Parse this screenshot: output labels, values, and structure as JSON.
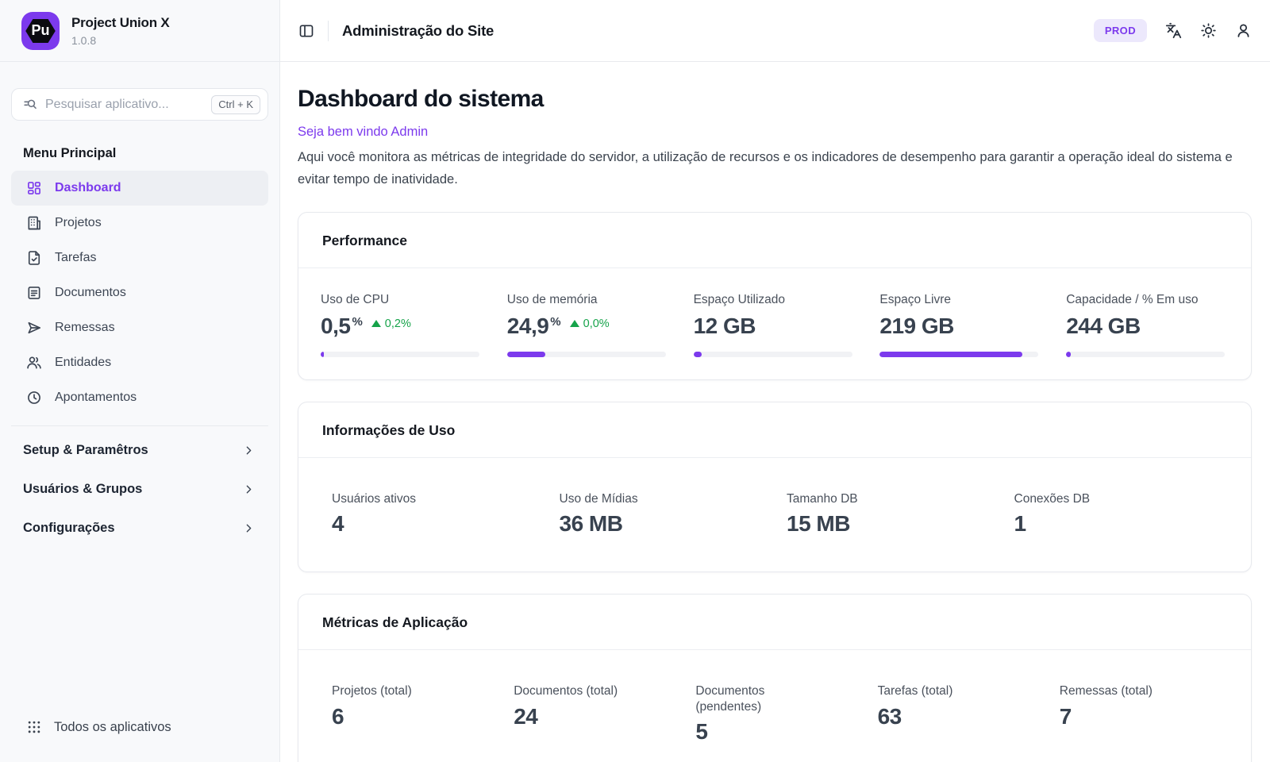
{
  "app": {
    "name": "Project Union X",
    "version": "1.0.8",
    "logo_initials": "Pu"
  },
  "header": {
    "title": "Administração do Site",
    "env_badge": "PROD",
    "toggle_icon": "panel-left",
    "actions": [
      {
        "name": "language-switcher",
        "icon": "languages"
      },
      {
        "name": "theme-toggle",
        "icon": "sun"
      },
      {
        "name": "user-menu",
        "icon": "user"
      }
    ]
  },
  "sidebar": {
    "search": {
      "placeholder": "Pesquisar aplicativo...",
      "shortcut": "Ctrl + K",
      "icon": "search"
    },
    "section_title": "Menu Principal",
    "items": [
      {
        "label": "Dashboard",
        "icon": "dashboard",
        "active": true
      },
      {
        "label": "Projetos",
        "icon": "building",
        "active": false
      },
      {
        "label": "Tarefas",
        "icon": "file-check",
        "active": false
      },
      {
        "label": "Documentos",
        "icon": "document-lines",
        "active": false
      },
      {
        "label": "Remessas",
        "icon": "send",
        "active": false
      },
      {
        "label": "Entidades",
        "icon": "users",
        "active": false
      },
      {
        "label": "Apontamentos",
        "icon": "clock",
        "active": false
      }
    ],
    "groups": [
      {
        "label": "Setup & Paramêtros",
        "icon": "chevron-right"
      },
      {
        "label": "Usuários & Grupos",
        "icon": "chevron-right"
      },
      {
        "label": "Configurações",
        "icon": "chevron-right"
      }
    ],
    "footer": {
      "label": "Todos os aplicativos",
      "icon": "apps-grid"
    }
  },
  "main": {
    "title": "Dashboard do sistema",
    "welcome": "Seja bem vindo Admin",
    "description": "Aqui você monitora as métricas de integridade do servidor, a utilização de recursos e os indicadores de desempenho para garantir a operação ideal do sistema e evitar tempo de inatividade.",
    "cards": {
      "performance": {
        "title": "Performance",
        "stats": [
          {
            "label": "Uso de CPU",
            "value": "0,5",
            "unit": "%",
            "delta": "0,2%",
            "delta_direction": "up",
            "progress_pct": 2
          },
          {
            "label": "Uso de memória",
            "value": "24,9",
            "unit": "%",
            "delta": "0,0%",
            "delta_direction": "up",
            "progress_pct": 24
          },
          {
            "label": "Espaço Utilizado",
            "value": "12 GB",
            "progress_pct": 5
          },
          {
            "label": "Espaço Livre",
            "value": "219 GB",
            "progress_pct": 90
          },
          {
            "label": "Capacidade / % Em uso",
            "value": "244 GB",
            "progress_pct": 3
          }
        ]
      },
      "usage": {
        "title": "Informações de Uso",
        "stats": [
          {
            "label": "Usuários ativos",
            "value": "4"
          },
          {
            "label": "Uso de Mídias",
            "value": "36 MB"
          },
          {
            "label": "Tamanho DB",
            "value": "15 MB"
          },
          {
            "label": "Conexões DB",
            "value": "1"
          }
        ]
      },
      "metrics": {
        "title": "Métricas de Aplicação",
        "stats": [
          {
            "label": "Projetos (total)",
            "value": "6"
          },
          {
            "label": "Documentos (total)",
            "value": "24"
          },
          {
            "label": "Documentos (pendentes)",
            "value": "5"
          },
          {
            "label": "Tarefas (total)",
            "value": "63"
          },
          {
            "label": "Remessas (total)",
            "value": "7"
          }
        ]
      }
    }
  },
  "colors": {
    "accent": "#7c3aed",
    "accent_soft": "#ece8fc",
    "positive": "#16a34a",
    "progress_track": "#f1f2f5",
    "sidebar_bg": "#f8f9fb"
  }
}
